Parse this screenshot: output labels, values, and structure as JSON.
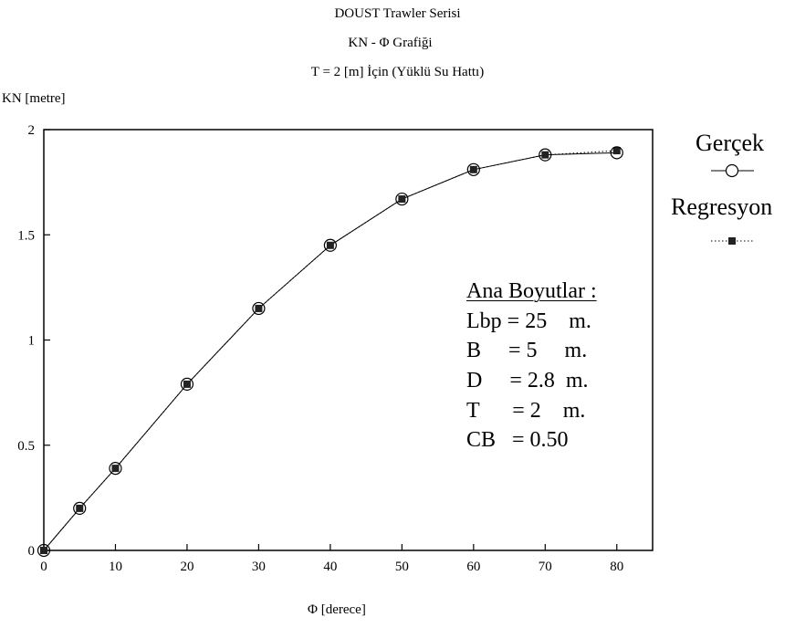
{
  "header": {
    "title": "DOUST Trawler Serisi",
    "subtitle": "KN - Φ  Grafiği",
    "condition": "T = 2 [m] İçin (Yüklü Su Hattı)"
  },
  "chart_data": {
    "type": "line",
    "ylabel": "KN [metre]",
    "xlabel": "Φ [derece]",
    "xlim": [
      0,
      85
    ],
    "ylim": [
      0,
      2
    ],
    "x_ticks": [
      "0",
      "10",
      "20",
      "30",
      "40",
      "50",
      "60",
      "70",
      "80"
    ],
    "y_ticks": [
      "0",
      "0.5",
      "1",
      "1.5",
      "2"
    ],
    "grid": false,
    "legend_position": "right",
    "x": [
      0,
      5,
      10,
      20,
      30,
      40,
      50,
      60,
      70,
      80
    ],
    "series": [
      {
        "name": "Gerçek",
        "style": "solid line, open circle markers",
        "values": [
          0,
          0.2,
          0.39,
          0.79,
          1.15,
          1.45,
          1.67,
          1.81,
          1.88,
          1.89
        ]
      },
      {
        "name": "Regresyon",
        "style": "dotted line, filled square markers",
        "values": [
          0,
          0.2,
          0.39,
          0.79,
          1.15,
          1.45,
          1.67,
          1.81,
          1.88,
          1.9
        ]
      }
    ]
  },
  "annotation": {
    "heading": "Ana Boyutlar :",
    "lines": [
      "Lbp = 25    m.",
      "B     = 5     m.",
      "D     = 2.8  m.",
      "T      = 2    m.",
      "CB   = 0.50"
    ]
  },
  "colors": {
    "line": "#000000",
    "background": "#ffffff"
  }
}
